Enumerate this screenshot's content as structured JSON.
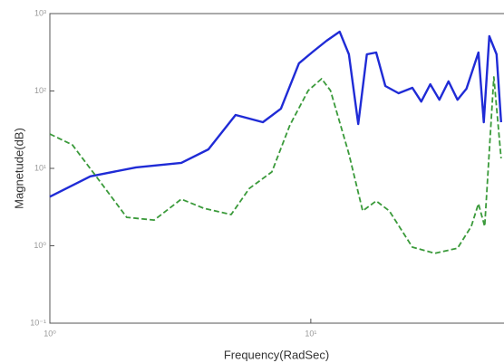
{
  "chart_data": {
    "type": "line",
    "xlabel": "Frequency(RadSec)",
    "ylabel": "Magnetude(dB)",
    "xscale": "log",
    "yscale": "log",
    "grid": false,
    "xlim": [
      1,
      55
    ],
    "ylim": [
      0.1,
      1000
    ],
    "xticks": [
      {
        "value": 1,
        "label": "10⁰"
      },
      {
        "value": 10,
        "label": "10¹"
      }
    ],
    "yticks": [
      {
        "value": 0.1,
        "label": "10⁻¹"
      },
      {
        "value": 1,
        "label": "10⁰"
      },
      {
        "value": 10,
        "label": "10¹"
      },
      {
        "value": 100,
        "label": "10²"
      },
      {
        "value": 1000,
        "label": "10³"
      }
    ],
    "series": [
      {
        "color": "#1f2bd6",
        "style": "solid",
        "x": [
          1,
          1.43,
          2.14,
          3.19,
          4.05,
          5.15,
          6.55,
          7.68,
          9.01,
          10.2,
          11.5,
          12.9,
          14.0,
          15.2,
          16.4,
          17.8,
          19.3,
          21.7,
          24.5,
          26.5,
          28.7,
          31.1,
          33.7,
          36.5,
          39.5,
          43.9,
          46.0,
          48.3,
          51.5,
          53.6
        ],
        "values": [
          4.3,
          7.9,
          10.3,
          11.8,
          17.6,
          49,
          39.5,
          59,
          228,
          323,
          446,
          584,
          298,
          37.4,
          298,
          314,
          116,
          93.5,
          110,
          73,
          122,
          77,
          133,
          77,
          107,
          314,
          39.5,
          510,
          298,
          39.5
        ]
      },
      {
        "color": "#3a9a3a",
        "style": "dashed",
        "x": [
          1,
          1.22,
          1.55,
          1.97,
          2.51,
          3.19,
          3.89,
          4.95,
          5.81,
          7.09,
          8.32,
          9.77,
          11.0,
          11.9,
          14.0,
          15.8,
          17.8,
          20.0,
          24.5,
          29.9,
          36.5,
          41.2,
          43.9,
          46.4,
          50.3,
          53.6
        ],
        "values": [
          27.8,
          20.1,
          6.9,
          2.33,
          2.15,
          4.0,
          3.05,
          2.53,
          5.5,
          9.0,
          36.4,
          101,
          144,
          101,
          15.4,
          2.82,
          3.79,
          2.82,
          0.96,
          0.8,
          0.93,
          1.78,
          3.5,
          1.78,
          152,
          13.5
        ]
      }
    ]
  }
}
